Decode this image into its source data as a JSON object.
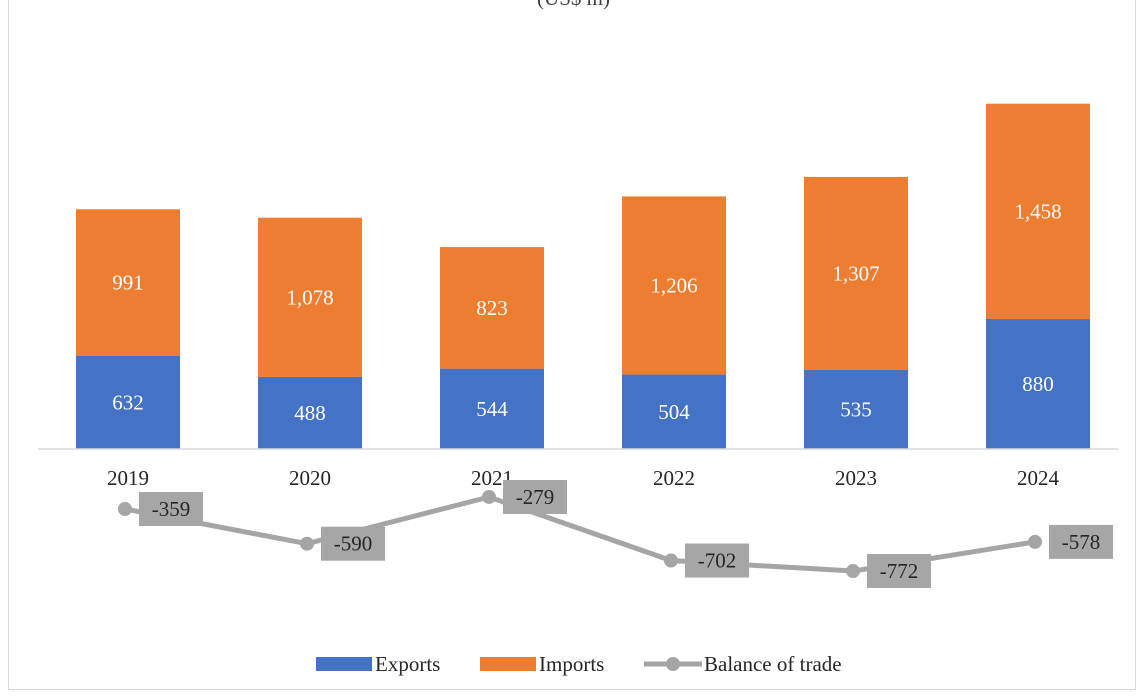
{
  "chart_data": {
    "type": "bar",
    "title": "(US$ m)",
    "categories": [
      "2019",
      "2020",
      "2021",
      "2022",
      "2023",
      "2024"
    ],
    "series": [
      {
        "name": "Exports",
        "type": "bar",
        "stacked": true,
        "color": "#4472c4",
        "values": [
          632,
          488,
          544,
          504,
          535,
          880
        ],
        "labels": [
          "632",
          "488",
          "544",
          "504",
          "535",
          "880"
        ]
      },
      {
        "name": "Imports",
        "type": "bar",
        "stacked": true,
        "color": "#ed7d31",
        "values": [
          991,
          1078,
          823,
          1206,
          1307,
          1458
        ],
        "labels": [
          "991",
          "1,078",
          "823",
          "1,206",
          "1,307",
          "1,458"
        ]
      },
      {
        "name": "Balance of trade",
        "type": "line",
        "color": "#a5a5a5",
        "values": [
          -359,
          -590,
          -279,
          -702,
          -772,
          -578
        ],
        "labels": [
          "-359",
          "-590",
          "-279",
          "-702",
          "-772",
          "-578"
        ]
      }
    ],
    "legend": {
      "position": "bottom",
      "items": [
        "Exports",
        "Imports",
        "Balance of trade"
      ]
    },
    "ylim": [
      -900,
      2400
    ],
    "grid": false,
    "xlabel": "",
    "ylabel": ""
  }
}
